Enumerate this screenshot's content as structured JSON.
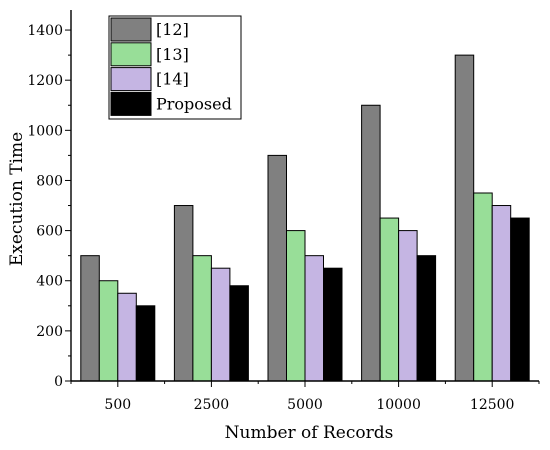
{
  "chart_data": {
    "type": "bar",
    "title": "",
    "xlabel": "Number of Records",
    "ylabel": "Execution Time",
    "categories": [
      "500",
      "2500",
      "5000",
      "10000",
      "12500"
    ],
    "series": [
      {
        "name": "[12]",
        "values": [
          500,
          700,
          900,
          1100,
          1300
        ],
        "color": "#808080"
      },
      {
        "name": "[13]",
        "values": [
          400,
          500,
          600,
          650,
          750
        ],
        "color": "#98de98"
      },
      {
        "name": "[14]",
        "values": [
          350,
          450,
          500,
          600,
          700
        ],
        "color": "#c5b5e3"
      },
      {
        "name": "Proposed",
        "values": [
          300,
          380,
          450,
          500,
          650
        ],
        "color": "#000000"
      }
    ],
    "ylim": [
      0,
      1480
    ],
    "yticks": [
      0,
      200,
      400,
      600,
      800,
      1000,
      1200,
      1400
    ],
    "grid": false,
    "legend_position": "top-left"
  }
}
